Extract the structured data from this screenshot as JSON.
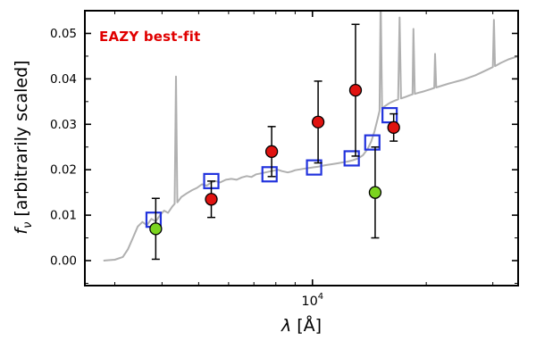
{
  "figure": {
    "annotation": {
      "text": "EAZY best-fit",
      "color": "#e00000"
    },
    "background": "#ffffff"
  },
  "chart_data": {
    "type": "line+scatter",
    "x_scale": "log",
    "xlim": [
      2500,
      35000
    ],
    "ylim": [
      -0.0055,
      0.055
    ],
    "xlabel": {
      "symbol": "λ",
      "rest": " [Å]"
    },
    "ylabel": {
      "symbol": "f",
      "subscript": "ν",
      "rest": " [arbitrarily scaled]"
    },
    "x_major_ticks": [
      10000
    ],
    "x_major_tick_label": {
      "base": "10",
      "exponent": "4"
    },
    "x_minor_ticks": [
      3000,
      4000,
      5000,
      6000,
      7000,
      8000,
      9000,
      20000,
      30000
    ],
    "y_major_ticks": [
      0,
      0.01,
      0.02,
      0.03,
      0.04,
      0.05
    ],
    "y_tick_labels": [
      "0.00",
      "0.01",
      "0.02",
      "0.03",
      "0.04",
      "0.05"
    ],
    "y_minor_ticks": [
      -0.005,
      0.005,
      0.015,
      0.025,
      0.035,
      0.045,
      0.055
    ],
    "grid": false,
    "legend": "none",
    "series": {
      "model_spectrum": {
        "color": "#b0b0b0",
        "points": [
          [
            2800,
            0.0
          ],
          [
            3000,
            0.0002
          ],
          [
            3150,
            0.0008
          ],
          [
            3250,
            0.0025
          ],
          [
            3350,
            0.005
          ],
          [
            3450,
            0.0075
          ],
          [
            3550,
            0.0085
          ],
          [
            3650,
            0.0078
          ],
          [
            3750,
            0.0092
          ],
          [
            3850,
            0.0086
          ],
          [
            3950,
            0.01
          ],
          [
            4050,
            0.011
          ],
          [
            4150,
            0.0105
          ],
          [
            4250,
            0.0118
          ],
          [
            4320,
            0.0125
          ],
          [
            4355,
            0.0405
          ],
          [
            4390,
            0.0128
          ],
          [
            4500,
            0.014
          ],
          [
            4650,
            0.0148
          ],
          [
            4800,
            0.0155
          ],
          [
            4950,
            0.016
          ],
          [
            5100,
            0.0168
          ],
          [
            5250,
            0.0165
          ],
          [
            5400,
            0.0172
          ],
          [
            5550,
            0.0175
          ],
          [
            5700,
            0.0172
          ],
          [
            5900,
            0.0178
          ],
          [
            6100,
            0.018
          ],
          [
            6300,
            0.0178
          ],
          [
            6500,
            0.0183
          ],
          [
            6700,
            0.0186
          ],
          [
            6900,
            0.0184
          ],
          [
            7100,
            0.019
          ],
          [
            7300,
            0.0192
          ],
          [
            7600,
            0.0195
          ],
          [
            7900,
            0.0198
          ],
          [
            8100,
            0.02
          ],
          [
            8300,
            0.0197
          ],
          [
            8600,
            0.0194
          ],
          [
            8800,
            0.0196
          ],
          [
            9000,
            0.0199
          ],
          [
            9300,
            0.0201
          ],
          [
            9600,
            0.0203
          ],
          [
            10000,
            0.0205
          ],
          [
            10400,
            0.0207
          ],
          [
            10800,
            0.021
          ],
          [
            11200,
            0.0212
          ],
          [
            11600,
            0.0214
          ],
          [
            12000,
            0.0216
          ],
          [
            12400,
            0.0218
          ],
          [
            12800,
            0.0221
          ],
          [
            13200,
            0.0225
          ],
          [
            13600,
            0.0232
          ],
          [
            14000,
            0.0246
          ],
          [
            14300,
            0.0262
          ],
          [
            14600,
            0.0285
          ],
          [
            14900,
            0.0315
          ],
          [
            15050,
            0.033
          ],
          [
            15150,
            0.058
          ],
          [
            15280,
            0.0335
          ],
          [
            15550,
            0.034
          ],
          [
            15800,
            0.0344
          ],
          [
            16100,
            0.0348
          ],
          [
            16500,
            0.0352
          ],
          [
            16850,
            0.0355
          ],
          [
            17000,
            0.0535
          ],
          [
            17150,
            0.0357
          ],
          [
            17600,
            0.036
          ],
          [
            18100,
            0.0364
          ],
          [
            18400,
            0.0366
          ],
          [
            18500,
            0.051
          ],
          [
            18650,
            0.0367
          ],
          [
            19200,
            0.037
          ],
          [
            19800,
            0.0373
          ],
          [
            20500,
            0.0377
          ],
          [
            21000,
            0.038
          ],
          [
            21100,
            0.0455
          ],
          [
            21250,
            0.0381
          ],
          [
            22000,
            0.0385
          ],
          [
            23000,
            0.039
          ],
          [
            24000,
            0.0394
          ],
          [
            25000,
            0.0398
          ],
          [
            26000,
            0.0403
          ],
          [
            27000,
            0.0408
          ],
          [
            28000,
            0.0414
          ],
          [
            29000,
            0.042
          ],
          [
            30000,
            0.0426
          ],
          [
            30200,
            0.053
          ],
          [
            30400,
            0.0428
          ],
          [
            31500,
            0.0435
          ],
          [
            33000,
            0.0443
          ],
          [
            35000,
            0.045
          ]
        ]
      },
      "model_photometry": {
        "marker": "open-square",
        "color": "#2233dd",
        "points": [
          [
            3800,
            0.009
          ],
          [
            5400,
            0.0175
          ],
          [
            7700,
            0.019
          ],
          [
            10100,
            0.0205
          ],
          [
            12700,
            0.0225
          ],
          [
            14400,
            0.026
          ],
          [
            16000,
            0.032
          ]
        ]
      },
      "observed_photometry": {
        "marker": "filled-circle",
        "color": "#e01310",
        "edge_color": "#000000",
        "points": [
          [
            5400,
            0.0135,
            0.004
          ],
          [
            7800,
            0.024,
            0.0055
          ],
          [
            10350,
            0.0305,
            0.009
          ],
          [
            13000,
            0.0375,
            0.0145
          ],
          [
            16400,
            0.0293,
            0.003
          ]
        ]
      },
      "flagged_photometry": {
        "marker": "filled-circle",
        "color": "#7bd41f",
        "edge_color": "#000000",
        "points": [
          [
            3850,
            0.007,
            0.0067
          ],
          [
            14650,
            0.015,
            0.01
          ]
        ]
      }
    }
  }
}
